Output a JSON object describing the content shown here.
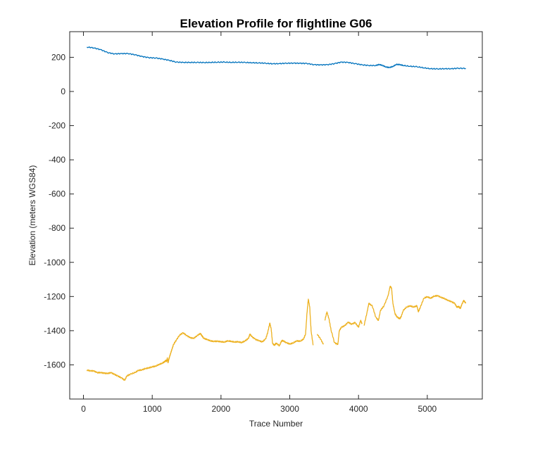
{
  "chart_data": {
    "type": "line",
    "title": "Elevation Profile for flightline G06",
    "xlabel": "Trace Number",
    "ylabel": "Elevation (meters WGS84)",
    "xlim": [
      -200,
      5800
    ],
    "ylim": [
      -1800,
      350
    ],
    "xticks": [
      0,
      1000,
      2000,
      3000,
      4000,
      5000
    ],
    "yticks": [
      200,
      0,
      -200,
      -400,
      -600,
      -800,
      -1000,
      -1200,
      -1400,
      -1600
    ],
    "grid": false,
    "series": [
      {
        "color": "#0072BD",
        "points": [
          [
            50,
            260
          ],
          [
            150,
            255
          ],
          [
            250,
            245
          ],
          [
            350,
            228
          ],
          [
            450,
            220
          ],
          [
            550,
            222
          ],
          [
            650,
            222
          ],
          [
            750,
            215
          ],
          [
            850,
            205
          ],
          [
            950,
            198
          ],
          [
            1050,
            196
          ],
          [
            1150,
            190
          ],
          [
            1250,
            182
          ],
          [
            1350,
            172
          ],
          [
            1450,
            170
          ],
          [
            1550,
            170
          ],
          [
            1650,
            170
          ],
          [
            1750,
            169
          ],
          [
            1850,
            170
          ],
          [
            1950,
            171
          ],
          [
            2050,
            172
          ],
          [
            2150,
            170
          ],
          [
            2250,
            171
          ],
          [
            2350,
            170
          ],
          [
            2450,
            168
          ],
          [
            2550,
            167
          ],
          [
            2650,
            165
          ],
          [
            2750,
            162
          ],
          [
            2850,
            163
          ],
          [
            2950,
            165
          ],
          [
            3050,
            166
          ],
          [
            3150,
            165
          ],
          [
            3250,
            164
          ],
          [
            3350,
            157
          ],
          [
            3450,
            156
          ],
          [
            3550,
            157
          ],
          [
            3650,
            163
          ],
          [
            3750,
            172
          ],
          [
            3850,
            170
          ],
          [
            3950,
            163
          ],
          [
            4050,
            156
          ],
          [
            4150,
            152
          ],
          [
            4250,
            152
          ],
          [
            4300,
            158
          ],
          [
            4350,
            152
          ],
          [
            4400,
            143
          ],
          [
            4450,
            140
          ],
          [
            4500,
            146
          ],
          [
            4550,
            158
          ],
          [
            4600,
            157
          ],
          [
            4650,
            152
          ],
          [
            4750,
            147
          ],
          [
            4850,
            145
          ],
          [
            4950,
            138
          ],
          [
            5050,
            133
          ],
          [
            5150,
            132
          ],
          [
            5250,
            133
          ],
          [
            5350,
            133
          ],
          [
            5450,
            136
          ],
          [
            5560,
            135
          ]
        ]
      },
      {
        "color": "#EDB120",
        "segments": [
          [
            [
              50,
              -1630
            ],
            [
              100,
              -1635
            ],
            [
              150,
              -1635
            ],
            [
              200,
              -1645
            ],
            [
              250,
              -1645
            ],
            [
              300,
              -1648
            ],
            [
              350,
              -1650
            ],
            [
              400,
              -1645
            ],
            [
              450,
              -1655
            ],
            [
              500,
              -1665
            ],
            [
              550,
              -1675
            ],
            [
              600,
              -1690
            ],
            [
              630,
              -1665
            ],
            [
              680,
              -1655
            ],
            [
              750,
              -1645
            ],
            [
              800,
              -1632
            ],
            [
              850,
              -1630
            ],
            [
              900,
              -1622
            ],
            [
              950,
              -1618
            ],
            [
              1000,
              -1612
            ],
            [
              1050,
              -1608
            ],
            [
              1100,
              -1598
            ],
            [
              1150,
              -1590
            ],
            [
              1180,
              -1582
            ],
            [
              1200,
              -1575
            ],
            [
              1210,
              -1580
            ],
            [
              1220,
              -1560
            ],
            [
              1230,
              -1588
            ],
            [
              1240,
              -1570
            ],
            [
              1250,
              -1555
            ],
            [
              1270,
              -1530
            ],
            [
              1290,
              -1505
            ],
            [
              1310,
              -1480
            ],
            [
              1350,
              -1455
            ],
            [
              1400,
              -1425
            ],
            [
              1450,
              -1412
            ],
            [
              1500,
              -1428
            ],
            [
              1550,
              -1440
            ],
            [
              1600,
              -1445
            ],
            [
              1650,
              -1430
            ],
            [
              1700,
              -1416
            ],
            [
              1720,
              -1428
            ],
            [
              1750,
              -1445
            ],
            [
              1800,
              -1452
            ],
            [
              1850,
              -1460
            ],
            [
              1900,
              -1463
            ],
            [
              1950,
              -1462
            ],
            [
              2000,
              -1465
            ],
            [
              2050,
              -1467
            ],
            [
              2100,
              -1460
            ],
            [
              2150,
              -1463
            ],
            [
              2200,
              -1467
            ],
            [
              2250,
              -1465
            ],
            [
              2300,
              -1470
            ],
            [
              2350,
              -1460
            ],
            [
              2400,
              -1445
            ],
            [
              2420,
              -1420
            ],
            [
              2450,
              -1435
            ],
            [
              2500,
              -1450
            ],
            [
              2550,
              -1458
            ],
            [
              2600,
              -1465
            ],
            [
              2650,
              -1448
            ],
            [
              2680,
              -1410
            ],
            [
              2710,
              -1355
            ],
            [
              2730,
              -1390
            ],
            [
              2750,
              -1475
            ],
            [
              2780,
              -1485
            ],
            [
              2800,
              -1472
            ],
            [
              2850,
              -1488
            ],
            [
              2880,
              -1460
            ],
            [
              2900,
              -1458
            ],
            [
              2950,
              -1470
            ],
            [
              3000,
              -1478
            ],
            [
              3050,
              -1472
            ],
            [
              3100,
              -1460
            ],
            [
              3150,
              -1462
            ],
            [
              3200,
              -1450
            ],
            [
              3230,
              -1420
            ],
            [
              3250,
              -1300
            ],
            [
              3270,
              -1215
            ],
            [
              3290,
              -1260
            ],
            [
              3310,
              -1400
            ],
            [
              3340,
              -1485
            ]
          ],
          [
            [
              3400,
              -1420
            ],
            [
              3450,
              -1450
            ],
            [
              3490,
              -1480
            ]
          ],
          [
            [
              3510,
              -1340
            ],
            [
              3540,
              -1290
            ],
            [
              3570,
              -1330
            ],
            [
              3600,
              -1395
            ],
            [
              3650,
              -1470
            ],
            [
              3700,
              -1480
            ],
            [
              3720,
              -1400
            ],
            [
              3750,
              -1380
            ],
            [
              3800,
              -1370
            ],
            [
              3850,
              -1350
            ],
            [
              3900,
              -1362
            ],
            [
              3950,
              -1352
            ],
            [
              4000,
              -1380
            ],
            [
              4030,
              -1340
            ],
            [
              4050,
              -1360
            ]
          ],
          [
            [
              4080,
              -1370
            ],
            [
              4120,
              -1300
            ],
            [
              4150,
              -1240
            ],
            [
              4200,
              -1255
            ],
            [
              4250,
              -1320
            ],
            [
              4290,
              -1340
            ],
            [
              4320,
              -1280
            ],
            [
              4370,
              -1255
            ],
            [
              4430,
              -1195
            ],
            [
              4460,
              -1140
            ],
            [
              4480,
              -1150
            ],
            [
              4500,
              -1240
            ],
            [
              4530,
              -1300
            ],
            [
              4560,
              -1320
            ],
            [
              4600,
              -1330
            ],
            [
              4620,
              -1318
            ],
            [
              4650,
              -1282
            ],
            [
              4700,
              -1262
            ],
            [
              4750,
              -1255
            ],
            [
              4800,
              -1262
            ],
            [
              4850,
              -1255
            ],
            [
              4870,
              -1290
            ],
            [
              4900,
              -1262
            ],
            [
              4950,
              -1210
            ],
            [
              5000,
              -1202
            ],
            [
              5050,
              -1210
            ],
            [
              5100,
              -1198
            ],
            [
              5150,
              -1195
            ],
            [
              5200,
              -1205
            ],
            [
              5250,
              -1212
            ],
            [
              5300,
              -1222
            ],
            [
              5350,
              -1230
            ],
            [
              5400,
              -1240
            ],
            [
              5430,
              -1262
            ],
            [
              5460,
              -1258
            ],
            [
              5480,
              -1270
            ],
            [
              5500,
              -1248
            ],
            [
              5530,
              -1222
            ],
            [
              5560,
              -1240
            ]
          ]
        ]
      }
    ]
  }
}
